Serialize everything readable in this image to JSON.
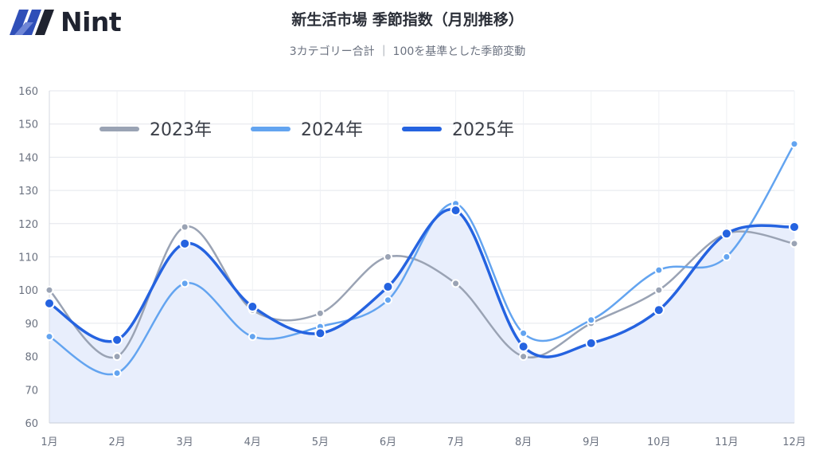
{
  "brand": {
    "name": "Nint"
  },
  "header": {
    "title": "新生活市場 季節指数（月別推移）",
    "subtitle": "3カテゴリー合計 ｜ 100を基準とした季節変動"
  },
  "chart_data": {
    "type": "line",
    "categories": [
      "1月",
      "2月",
      "3月",
      "4月",
      "5月",
      "6月",
      "7月",
      "8月",
      "9月",
      "10月",
      "11月",
      "12月"
    ],
    "series": [
      {
        "name": "2023年",
        "color": "#9aa3b4",
        "values": [
          100,
          80,
          119,
          94,
          93,
          110,
          102,
          80,
          90,
          100,
          117,
          114
        ]
      },
      {
        "name": "2024年",
        "color": "#63a4f0",
        "values": [
          86,
          75,
          102,
          86,
          89,
          97,
          126,
          87,
          91,
          106,
          110,
          144
        ]
      },
      {
        "name": "2025年",
        "color": "#2563e0",
        "values": [
          96,
          85,
          114,
          95,
          87,
          101,
          124,
          83,
          84,
          94,
          117,
          119
        ]
      }
    ],
    "ylim": [
      60,
      160
    ],
    "yticks": [
      60,
      70,
      80,
      90,
      100,
      110,
      120,
      130,
      140,
      150,
      160
    ],
    "area_fill_series": "2025年",
    "area_fill_color": "#e8eefc",
    "grid": true,
    "legend_position": "top-left"
  }
}
